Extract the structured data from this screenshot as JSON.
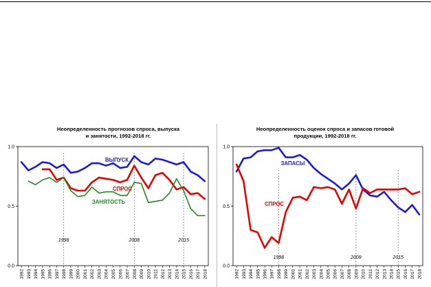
{
  "chart_data": [
    {
      "type": "line",
      "title": "Неопределенность прогнозов спроса, выпуска",
      "title_line2": "и занятости, 1992-2018 гг.",
      "x": [
        "1992",
        "1993",
        "1994",
        "1995",
        "1996",
        "1997",
        "1998",
        "1999",
        "2000",
        "2001",
        "2002",
        "2003",
        "2004",
        "2005",
        "2006",
        "2007",
        "2008",
        "2009",
        "2010",
        "2011",
        "2012",
        "2013",
        "2014",
        "2015",
        "2016",
        "2017",
        "2018"
      ],
      "ylim": [
        0,
        1.0
      ],
      "yticks": [
        "0.0",
        "0.5",
        "1.0"
      ],
      "grid": false,
      "series": [
        {
          "name": "ВЫПУСК",
          "color": "#1a1adc",
          "values": [
            0.87,
            0.8,
            0.83,
            0.87,
            0.86,
            0.82,
            0.85,
            0.78,
            0.79,
            0.82,
            0.86,
            0.86,
            0.84,
            0.86,
            0.82,
            0.83,
            0.92,
            0.87,
            0.85,
            0.9,
            0.89,
            0.87,
            0.85,
            0.87,
            0.79,
            0.76,
            0.71
          ]
        },
        {
          "name": "СПРОС",
          "color": "#e60000",
          "values": [
            null,
            null,
            null,
            0.81,
            0.81,
            0.72,
            0.74,
            0.65,
            0.63,
            0.63,
            0.7,
            0.74,
            0.73,
            0.72,
            0.7,
            0.72,
            0.84,
            0.74,
            0.65,
            0.76,
            0.78,
            0.72,
            0.64,
            0.66,
            0.6,
            0.61,
            0.56
          ]
        },
        {
          "name": "ЗАНЯТОСТЬ",
          "color": "#1e8c1e",
          "values": [
            null,
            0.71,
            0.68,
            0.72,
            0.74,
            0.7,
            0.74,
            0.63,
            0.58,
            0.59,
            0.66,
            0.61,
            0.62,
            0.62,
            0.59,
            0.59,
            0.7,
            0.69,
            0.53,
            0.54,
            0.55,
            0.61,
            0.73,
            0.63,
            0.48,
            0.42,
            0.42
          ]
        }
      ],
      "markers": [
        {
          "x": "1998",
          "label": "1998"
        },
        {
          "x": "2008",
          "label": "2008"
        },
        {
          "x": "2015",
          "label": "2015"
        }
      ]
    },
    {
      "type": "line",
      "title": "Неопределенность оценок спроса и запасов готовой",
      "title_line2": "продукции, 1992-2018 гг.",
      "x": [
        "1992",
        "1993",
        "1994",
        "1995",
        "1996",
        "1997",
        "1998",
        "1999",
        "2000",
        "2001",
        "2002",
        "2003",
        "2004",
        "2005",
        "2006",
        "2007",
        "2008",
        "2009",
        "2010",
        "2011",
        "2012",
        "2013",
        "2014",
        "2015",
        "2016",
        "2017",
        "2018"
      ],
      "ylim": [
        0,
        1.0
      ],
      "yticks": [
        "0.0",
        "0.5",
        "1.0"
      ],
      "grid": false,
      "series": [
        {
          "name": "ЗАПАСЫ",
          "color": "#1a1adc",
          "values": [
            0.79,
            0.9,
            0.91,
            0.96,
            0.97,
            0.97,
            0.99,
            0.91,
            0.91,
            0.93,
            0.89,
            0.82,
            0.77,
            0.73,
            0.69,
            0.64,
            0.69,
            0.76,
            0.64,
            0.59,
            0.58,
            0.62,
            0.55,
            0.49,
            0.45,
            0.51,
            0.43
          ]
        },
        {
          "name": "СПРОС",
          "color": "#e60000",
          "values": [
            0.85,
            0.71,
            0.3,
            0.28,
            0.15,
            0.24,
            0.19,
            0.45,
            0.57,
            0.58,
            0.55,
            0.66,
            0.65,
            0.66,
            0.64,
            0.52,
            0.64,
            0.48,
            0.65,
            0.61,
            0.64,
            0.64,
            0.64,
            0.64,
            0.65,
            0.6,
            0.62
          ]
        }
      ],
      "markers": [
        {
          "x": "1998",
          "label": "1998"
        },
        {
          "x": "2009",
          "label": "2009"
        },
        {
          "x": "2015",
          "label": "2015"
        }
      ]
    }
  ]
}
